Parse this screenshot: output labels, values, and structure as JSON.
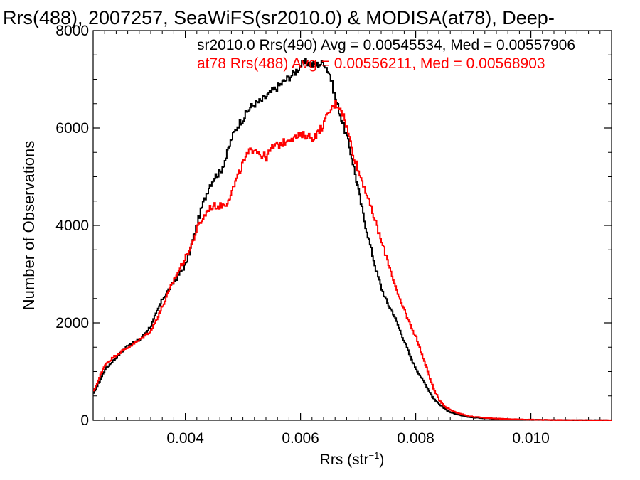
{
  "chart_data": {
    "type": "line",
    "title": "Rrs(488), 2007257, SeaWiFS(sr2010.0) & MODISA(at78), Deep-",
    "xlabel_main": "Rrs (str",
    "xlabel_sup": "−1",
    "xlabel_close": ")",
    "ylabel": "Number of Observations",
    "xlim": [
      0.0024,
      0.0114
    ],
    "ylim": [
      0,
      8000
    ],
    "x_ticks": [
      {
        "value": 0.004,
        "label": "0.004"
      },
      {
        "value": 0.006,
        "label": "0.006"
      },
      {
        "value": 0.008,
        "label": "0.008"
      },
      {
        "value": 0.01,
        "label": "0.010"
      }
    ],
    "y_ticks": [
      {
        "value": 0,
        "label": "0"
      },
      {
        "value": 2000,
        "label": "2000"
      },
      {
        "value": 4000,
        "label": "4000"
      },
      {
        "value": 6000,
        "label": "6000"
      },
      {
        "value": 8000,
        "label": "8000"
      }
    ],
    "grid": false,
    "legend_placement": "top-right",
    "colors": {
      "series_1": "#000000",
      "series_2": "#ff0000"
    },
    "series": [
      {
        "name": "sr2010.0 Rrs(490) Avg = 0.00545534, Med = 0.00557906",
        "color": "#000000",
        "x": [
          0.0024,
          0.0026,
          0.0028,
          0.003,
          0.0032,
          0.0034,
          0.0036,
          0.0038,
          0.004,
          0.0041,
          0.0042,
          0.0043,
          0.0044,
          0.0045,
          0.0046,
          0.0047,
          0.0048,
          0.0049,
          0.005,
          0.0051,
          0.0052,
          0.0053,
          0.0054,
          0.0055,
          0.0056,
          0.0057,
          0.0058,
          0.0059,
          0.006,
          0.0061,
          0.0062,
          0.0063,
          0.0064,
          0.0065,
          0.0066,
          0.0067,
          0.0068,
          0.0069,
          0.007,
          0.0071,
          0.0072,
          0.0073,
          0.0074,
          0.0075,
          0.0076,
          0.0077,
          0.0078,
          0.0079,
          0.008,
          0.0081,
          0.0082,
          0.0083,
          0.0084,
          0.0085,
          0.0086,
          0.0087,
          0.0088,
          0.0089,
          0.009,
          0.0092,
          0.0094,
          0.0096,
          0.0098,
          0.01,
          0.0102,
          0.0104,
          0.0106,
          0.0108,
          0.011,
          0.0112,
          0.0114
        ],
        "y": [
          550,
          1050,
          1300,
          1550,
          1650,
          1950,
          2500,
          2850,
          3200,
          3600,
          4050,
          4450,
          4800,
          5000,
          5100,
          5400,
          5800,
          6050,
          6200,
          6400,
          6500,
          6550,
          6650,
          6750,
          6850,
          6950,
          7050,
          7150,
          7300,
          7350,
          7300,
          7300,
          7350,
          7100,
          6600,
          6200,
          5800,
          5300,
          4700,
          4100,
          3600,
          3100,
          2700,
          2400,
          2200,
          1900,
          1600,
          1300,
          1050,
          850,
          650,
          450,
          330,
          230,
          160,
          120,
          90,
          70,
          55,
          40,
          30,
          20,
          15,
          10,
          8,
          5,
          5,
          3,
          2,
          1,
          0
        ]
      },
      {
        "name": "at78 Rrs(488) Avg = 0.00556211, Med = 0.00568903",
        "color": "#ff0000",
        "x": [
          0.0024,
          0.0026,
          0.0028,
          0.003,
          0.0032,
          0.0034,
          0.0036,
          0.0038,
          0.004,
          0.0041,
          0.0042,
          0.0043,
          0.0044,
          0.0045,
          0.0046,
          0.0047,
          0.0048,
          0.0049,
          0.005,
          0.0051,
          0.0052,
          0.0053,
          0.0054,
          0.0055,
          0.0056,
          0.0057,
          0.0058,
          0.0059,
          0.006,
          0.0061,
          0.0062,
          0.0063,
          0.0064,
          0.0065,
          0.0066,
          0.0067,
          0.0068,
          0.0069,
          0.007,
          0.0071,
          0.0072,
          0.0073,
          0.0074,
          0.0075,
          0.0076,
          0.0077,
          0.0078,
          0.0079,
          0.008,
          0.0081,
          0.0082,
          0.0083,
          0.0084,
          0.0085,
          0.0086,
          0.0087,
          0.0088,
          0.0089,
          0.009,
          0.0092,
          0.0094,
          0.0096,
          0.0098,
          0.01,
          0.0102,
          0.0104,
          0.0106,
          0.0108,
          0.011,
          0.0112,
          0.0114
        ],
        "y": [
          600,
          1150,
          1350,
          1500,
          1650,
          1850,
          2350,
          2900,
          3350,
          3600,
          3950,
          4150,
          4350,
          4400,
          4400,
          4450,
          4700,
          5000,
          5300,
          5500,
          5600,
          5450,
          5400,
          5600,
          5650,
          5700,
          5800,
          5800,
          5850,
          5850,
          5800,
          5900,
          6100,
          6350,
          6500,
          6400,
          6000,
          5500,
          5100,
          4800,
          4400,
          4050,
          3650,
          3300,
          2900,
          2500,
          2250,
          1950,
          1700,
          1350,
          1000,
          650,
          420,
          280,
          210,
          160,
          120,
          90,
          70,
          50,
          35,
          25,
          18,
          12,
          8,
          6,
          4,
          3,
          2,
          1,
          0
        ]
      }
    ]
  }
}
